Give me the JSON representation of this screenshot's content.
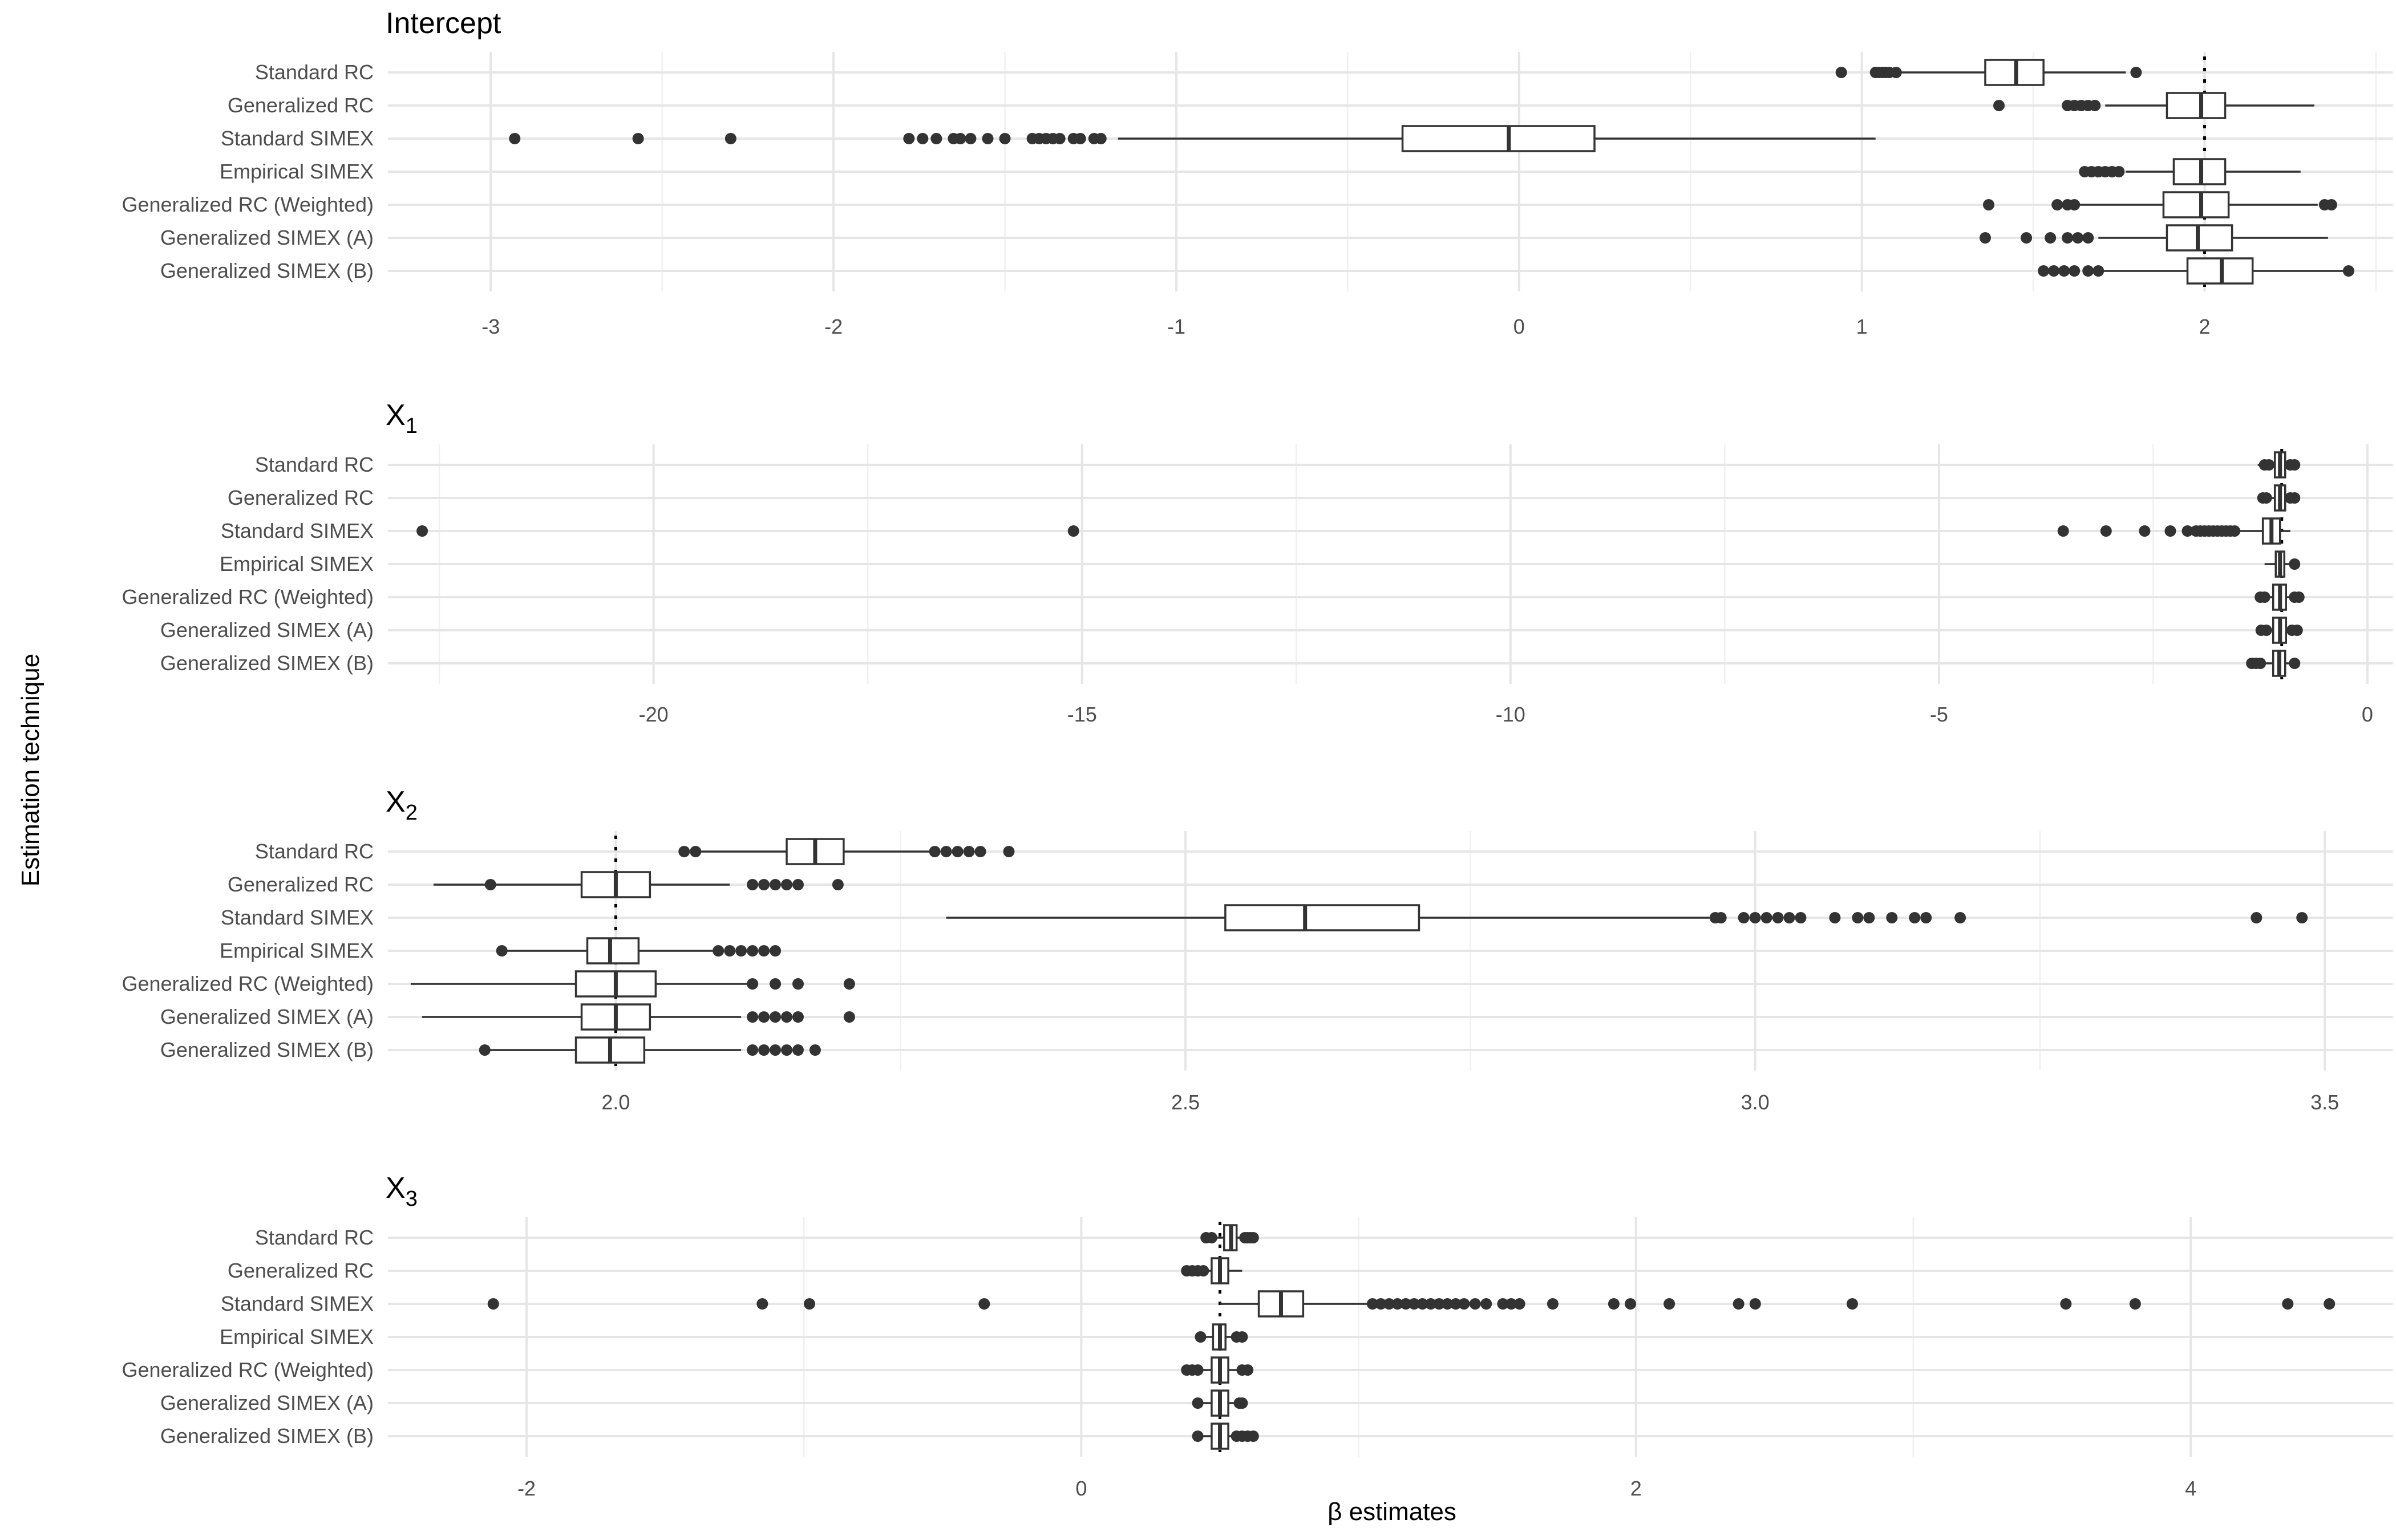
{
  "chart_data": {
    "type": "boxplot",
    "ylabel": "Estimation technique",
    "xlabel": "β  estimates",
    "categories": [
      "Standard RC",
      "Generalized RC",
      "Standard SIMEX",
      "Empirical SIMEX",
      "Generalized RC (Weighted)",
      "Generalized SIMEX (A)",
      "Generalized SIMEX (B)"
    ],
    "panels": [
      {
        "title": "Intercept",
        "title_sub": "",
        "xlim": [
          -3.3,
          2.55
        ],
        "true_value": 2.0,
        "ticks": [
          "-3",
          "-2",
          "-1",
          "0",
          "1",
          "2"
        ],
        "tick_values": [
          -3,
          -2,
          -1,
          0,
          1,
          2
        ],
        "minor_values": [
          -2.5,
          -1.5,
          -0.5,
          0.5,
          1.5,
          2.5
        ],
        "boxes": [
          {
            "whisker_low": 1.08,
            "q1": 1.36,
            "median": 1.45,
            "q3": 1.53,
            "whisker_high": 1.77,
            "outliers": [
              0.94,
              1.04,
              1.05,
              1.06,
              1.07,
              1.08,
              1.1,
              1.8
            ]
          },
          {
            "whisker_low": 1.71,
            "q1": 1.89,
            "median": 1.99,
            "q3": 2.06,
            "whisker_high": 2.32,
            "outliers": [
              1.4,
              1.6,
              1.62,
              1.64,
              1.66,
              1.68
            ]
          },
          {
            "whisker_low": -1.17,
            "q1": -0.34,
            "median": -0.03,
            "q3": 0.22,
            "whisker_high": 1.04,
            "outliers": [
              -2.93,
              -2.57,
              -2.3,
              -1.78,
              -1.74,
              -1.7,
              -1.65,
              -1.63,
              -1.6,
              -1.55,
              -1.5,
              -1.42,
              -1.4,
              -1.38,
              -1.36,
              -1.34,
              -1.3,
              -1.28,
              -1.24,
              -1.22
            ]
          },
          {
            "whisker_low": 1.77,
            "q1": 1.91,
            "median": 1.99,
            "q3": 2.06,
            "whisker_high": 2.28,
            "outliers": [
              1.65,
              1.67,
              1.69,
              1.71,
              1.73,
              1.75
            ]
          },
          {
            "whisker_low": 1.62,
            "q1": 1.88,
            "median": 1.99,
            "q3": 2.07,
            "whisker_high": 2.33,
            "outliers": [
              1.37,
              1.57,
              1.6,
              1.62,
              2.35,
              2.37
            ]
          },
          {
            "whisker_low": 1.69,
            "q1": 1.89,
            "median": 1.98,
            "q3": 2.08,
            "whisker_high": 2.36,
            "outliers": [
              1.36,
              1.48,
              1.55,
              1.6,
              1.63,
              1.66
            ]
          },
          {
            "whisker_low": 1.7,
            "q1": 1.95,
            "median": 2.05,
            "q3": 2.14,
            "whisker_high": 2.42,
            "outliers": [
              1.53,
              1.56,
              1.59,
              1.62,
              1.66,
              1.69,
              2.42
            ]
          }
        ]
      },
      {
        "title": "X",
        "title_sub": "1",
        "xlim": [
          -23.1,
          0.3
        ],
        "true_value": -1.0,
        "ticks": [
          "-20",
          "-15",
          "-10",
          "-5",
          "0"
        ],
        "tick_values": [
          -20,
          -15,
          -10,
          -5,
          0
        ],
        "minor_values": [
          -22.5,
          -17.5,
          -12.5,
          -7.5,
          -2.5
        ],
        "boxes": [
          {
            "whisker_low": -1.28,
            "q1": -1.08,
            "median": -1.02,
            "q3": -0.96,
            "whisker_high": -0.8,
            "outliers": [
              -1.2,
              -1.15,
              -0.9,
              -0.85
            ]
          },
          {
            "whisker_low": -1.28,
            "q1": -1.08,
            "median": -1.02,
            "q3": -0.96,
            "whisker_high": -0.8,
            "outliers": [
              -1.22,
              -1.18,
              -0.9,
              -0.85
            ]
          },
          {
            "whisker_low": -1.5,
            "q1": -1.22,
            "median": -1.12,
            "q3": -1.02,
            "whisker_high": -0.9,
            "outliers": [
              -22.7,
              -15.1,
              -3.55,
              -3.05,
              -2.6,
              -2.3,
              -2.1,
              -2.0,
              -1.95,
              -1.9,
              -1.85,
              -1.8,
              -1.75,
              -1.7,
              -1.65,
              -1.6,
              -1.55
            ]
          },
          {
            "whisker_low": -1.2,
            "q1": -1.07,
            "median": -1.02,
            "q3": -0.97,
            "whisker_high": -0.85,
            "outliers": [
              -0.85
            ]
          },
          {
            "whisker_low": -1.3,
            "q1": -1.1,
            "median": -1.02,
            "q3": -0.95,
            "whisker_high": -0.78,
            "outliers": [
              -1.25,
              -1.2,
              -0.85,
              -0.8
            ]
          },
          {
            "whisker_low": -1.3,
            "q1": -1.1,
            "median": -1.02,
            "q3": -0.95,
            "whisker_high": -0.8,
            "outliers": [
              -1.24,
              -1.18,
              -0.88,
              -0.82
            ]
          },
          {
            "whisker_low": -1.35,
            "q1": -1.1,
            "median": -1.03,
            "q3": -0.96,
            "whisker_high": -0.82,
            "outliers": [
              -1.35,
              -1.3,
              -1.25,
              -0.85
            ]
          }
        ]
      },
      {
        "title": "X",
        "title_sub": "2",
        "xlim": [
          1.8,
          3.56
        ],
        "true_value": 2.0,
        "ticks": [
          "2.0",
          "2.5",
          "3.0",
          "3.5"
        ],
        "tick_values": [
          2.0,
          2.5,
          3.0,
          3.5
        ],
        "minor_values": [
          2.25,
          2.75,
          3.25
        ],
        "boxes": [
          {
            "whisker_low": 2.07,
            "q1": 2.15,
            "median": 2.175,
            "q3": 2.2,
            "whisker_high": 2.28,
            "outliers": [
              2.06,
              2.07,
              2.28,
              2.29,
              2.3,
              2.31,
              2.32,
              2.345
            ]
          },
          {
            "whisker_low": 1.84,
            "q1": 1.97,
            "median": 2.0,
            "q3": 2.03,
            "whisker_high": 2.1,
            "outliers": [
              1.89,
              2.12,
              2.13,
              2.14,
              2.15,
              2.16,
              2.195
            ]
          },
          {
            "whisker_low": 2.29,
            "q1": 2.535,
            "median": 2.605,
            "q3": 2.705,
            "whisker_high": 2.96,
            "outliers": [
              2.965,
              2.97,
              2.99,
              3.0,
              3.01,
              3.02,
              3.03,
              3.04,
              3.07,
              3.09,
              3.1,
              3.12,
              3.14,
              3.15,
              3.18,
              3.44,
              3.48
            ]
          },
          {
            "whisker_low": 1.9,
            "q1": 1.975,
            "median": 1.995,
            "q3": 2.02,
            "whisker_high": 2.09,
            "outliers": [
              1.9,
              2.09,
              2.1,
              2.11,
              2.12,
              2.13,
              2.14
            ]
          },
          {
            "whisker_low": 1.82,
            "q1": 1.965,
            "median": 2.0,
            "q3": 2.035,
            "whisker_high": 2.12,
            "outliers": [
              2.12,
              2.14,
              2.16,
              2.205
            ]
          },
          {
            "whisker_low": 1.83,
            "q1": 1.97,
            "median": 2.0,
            "q3": 2.03,
            "whisker_high": 2.11,
            "outliers": [
              2.12,
              2.13,
              2.14,
              2.15,
              2.16,
              2.205
            ]
          },
          {
            "whisker_low": 1.885,
            "q1": 1.965,
            "median": 1.995,
            "q3": 2.025,
            "whisker_h​igh": 2.11,
            "whisker_high": 2.11,
            "outliers": [
              1.885,
              2.12,
              2.13,
              2.14,
              2.15,
              2.16,
              2.175
            ]
          }
        ]
      },
      {
        "title": "X",
        "title_sub": "3",
        "xlim": [
          -2.5,
          4.73
        ],
        "true_value": 0.5,
        "ticks": [
          "-2",
          "0",
          "2",
          "4"
        ],
        "tick_values": [
          -2,
          0,
          2,
          4
        ],
        "minor_values": [
          -1,
          1,
          3
        ],
        "boxes": [
          {
            "whisker_low": 0.46,
            "q1": 0.515,
            "median": 0.54,
            "q3": 0.56,
            "whisker_high": 0.62,
            "outliers": [
              0.45,
              0.47,
              0.59,
              0.6,
              0.61,
              0.62
            ]
          },
          {
            "whisker_low": 0.4,
            "q1": 0.47,
            "median": 0.5,
            "q3": 0.53,
            "whisker_high": 0.58,
            "outliers": [
              0.38,
              0.4,
              0.42,
              0.44
            ]
          },
          {
            "whisker_low": 0.5,
            "q1": 0.64,
            "median": 0.72,
            "q3": 0.8,
            "whisker_high": 1.04,
            "outliers": [
              -2.12,
              -1.15,
              -0.98,
              -0.35,
              1.05,
              1.08,
              1.11,
              1.14,
              1.17,
              1.2,
              1.23,
              1.26,
              1.29,
              1.32,
              1.35,
              1.38,
              1.42,
              1.46,
              1.52,
              1.55,
              1.58,
              1.7,
              1.92,
              1.98,
              2.12,
              2.37,
              2.43,
              2.78,
              3.55,
              3.8,
              4.35,
              4.5
            ]
          },
          {
            "whisker_low": 0.43,
            "q1": 0.475,
            "median": 0.5,
            "q3": 0.52,
            "whisker_high": 0.58,
            "outliers": [
              0.43,
              0.56,
              0.58
            ]
          },
          {
            "whisker_low": 0.38,
            "q1": 0.47,
            "median": 0.5,
            "q3": 0.53,
            "whisker_high": 0.6,
            "outliers": [
              0.38,
              0.4,
              0.42,
              0.58,
              0.6
            ]
          },
          {
            "whisker_low": 0.42,
            "q1": 0.47,
            "median": 0.5,
            "q3": 0.53,
            "whisker_high": 0.58,
            "outliers": [
              0.42,
              0.57,
              0.58
            ]
          },
          {
            "whisker_low": 0.42,
            "q1": 0.47,
            "median": 0.5,
            "q3": 0.53,
            "whisker_high": 0.61,
            "outliers": [
              0.42,
              0.56,
              0.58,
              0.6,
              0.62
            ]
          }
        ]
      }
    ]
  }
}
